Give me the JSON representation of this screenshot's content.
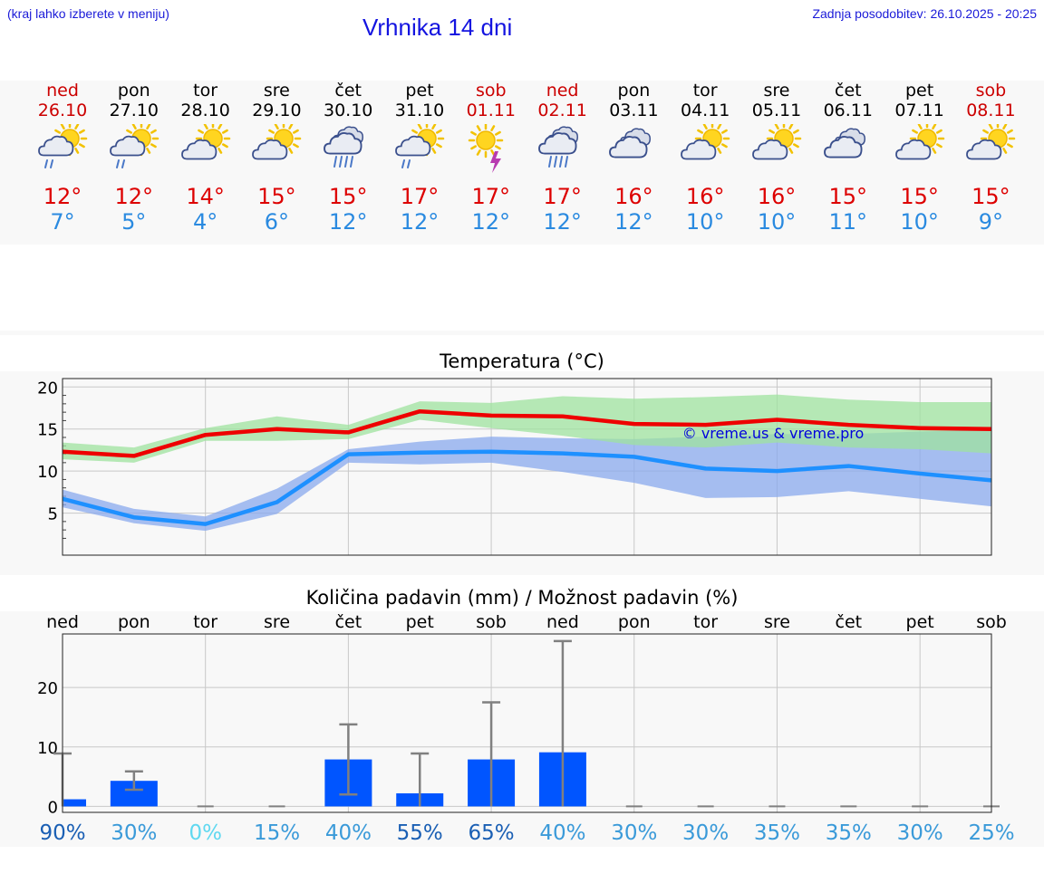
{
  "header": {
    "region_hint": "(kraj lahko izberete v meniju)",
    "title": "Vrhnika 14 dni",
    "updated": "Zadnja posodobitev: 26.10.2025 - 20:25"
  },
  "days": [
    {
      "name": "ned",
      "date": "26.10",
      "weekend": true,
      "icon": "sun-cloud-rain-icon",
      "tmax": "12°",
      "tmin": "7°"
    },
    {
      "name": "pon",
      "date": "27.10",
      "weekend": false,
      "icon": "sun-cloud-rain-icon",
      "tmax": "12°",
      "tmin": "5°"
    },
    {
      "name": "tor",
      "date": "28.10",
      "weekend": false,
      "icon": "sun-cloud-icon",
      "tmax": "14°",
      "tmin": "4°"
    },
    {
      "name": "sre",
      "date": "29.10",
      "weekend": false,
      "icon": "sun-cloud-icon",
      "tmax": "15°",
      "tmin": "6°"
    },
    {
      "name": "čet",
      "date": "30.10",
      "weekend": false,
      "icon": "cloud-heavy-rain-icon",
      "tmax": "15°",
      "tmin": "12°"
    },
    {
      "name": "pet",
      "date": "31.10",
      "weekend": false,
      "icon": "sun-cloud-rain-icon",
      "tmax": "17°",
      "tmin": "12°"
    },
    {
      "name": "sob",
      "date": "01.11",
      "weekend": true,
      "icon": "sun-thunder-icon",
      "tmax": "17°",
      "tmin": "12°"
    },
    {
      "name": "ned",
      "date": "02.11",
      "weekend": true,
      "icon": "cloud-heavy-rain-icon",
      "tmax": "17°",
      "tmin": "12°"
    },
    {
      "name": "pon",
      "date": "03.11",
      "weekend": false,
      "icon": "cloud-icon",
      "tmax": "16°",
      "tmin": "12°"
    },
    {
      "name": "tor",
      "date": "04.11",
      "weekend": false,
      "icon": "sun-cloud-icon",
      "tmax": "16°",
      "tmin": "10°"
    },
    {
      "name": "sre",
      "date": "05.11",
      "weekend": false,
      "icon": "sun-cloud-icon",
      "tmax": "16°",
      "tmin": "10°"
    },
    {
      "name": "čet",
      "date": "06.11",
      "weekend": false,
      "icon": "cloud-icon",
      "tmax": "15°",
      "tmin": "11°"
    },
    {
      "name": "pet",
      "date": "07.11",
      "weekend": false,
      "icon": "sun-cloud-icon",
      "tmax": "15°",
      "tmin": "10°"
    },
    {
      "name": "sob",
      "date": "08.11",
      "weekend": true,
      "icon": "sun-cloud-icon",
      "tmax": "15°",
      "tmin": "9°"
    }
  ],
  "colors": {
    "weekend": "#cc0000",
    "tmax": "#dd0000",
    "tmin": "#2a8ae0",
    "maxLine": "#ee0000",
    "minLine": "#1e90ff",
    "maxBand": "#9fe39f",
    "minBand": "#8aaaee",
    "bar": "#0055ff",
    "whisker": "#808080"
  },
  "chart_data": [
    {
      "type": "line",
      "title": "Temperatura (°C)",
      "watermark": "© vreme.us & vreme.pro",
      "ylim": [
        0,
        21
      ],
      "yticks": [
        20,
        15,
        10,
        5
      ],
      "x": [
        0,
        1,
        2,
        3,
        4,
        5,
        6,
        7,
        8,
        9,
        10,
        11,
        12,
        13
      ],
      "series": [
        {
          "role": "max",
          "values": [
            12.3,
            11.8,
            14.3,
            15.0,
            14.6,
            17.1,
            16.6,
            16.5,
            15.6,
            15.5,
            16.1,
            15.5,
            15.1,
            15.0
          ],
          "band_low": [
            11.4,
            11.0,
            13.6,
            13.6,
            13.8,
            16.1,
            15.1,
            14.2,
            13.1,
            12.8,
            13.4,
            12.8,
            12.6,
            12.1
          ],
          "band_high": [
            13.4,
            12.8,
            15.1,
            16.5,
            15.5,
            18.3,
            18.1,
            18.9,
            18.6,
            18.8,
            19.1,
            18.5,
            18.2,
            18.2
          ]
        },
        {
          "role": "min",
          "values": [
            6.7,
            4.5,
            3.7,
            6.3,
            12.0,
            12.2,
            12.3,
            12.1,
            11.7,
            10.3,
            10.0,
            10.6,
            9.7,
            8.9
          ],
          "band_low": [
            5.7,
            3.8,
            2.9,
            4.9,
            11.0,
            10.8,
            11.0,
            9.9,
            8.6,
            6.8,
            6.9,
            7.6,
            6.7,
            5.8
          ],
          "band_high": [
            7.8,
            5.5,
            4.6,
            7.9,
            12.6,
            13.5,
            14.1,
            13.9,
            13.8,
            14.1,
            14.4,
            14.4,
            14.7,
            14.9
          ]
        }
      ]
    },
    {
      "type": "bar",
      "title": "Količina padavin (mm) / Možnost padavin (%)",
      "ylim": [
        -1,
        29
      ],
      "yticks": [
        20,
        10,
        0
      ],
      "categories": [
        "ned",
        "pon",
        "tor",
        "sre",
        "čet",
        "pet",
        "sob",
        "ned",
        "pon",
        "tor",
        "sre",
        "čet",
        "pet",
        "sob"
      ],
      "values": [
        1.2,
        4.3,
        0,
        0,
        7.9,
        2.2,
        7.9,
        9.1,
        0,
        0,
        0,
        0,
        0,
        0
      ],
      "err_low": [
        0,
        2.8,
        0,
        0,
        2.0,
        0,
        0,
        0,
        0,
        0,
        0,
        0,
        0,
        0
      ],
      "err_high": [
        8.9,
        5.9,
        0,
        0,
        13.8,
        8.9,
        17.5,
        27.8,
        0,
        0,
        0,
        0,
        0,
        0
      ],
      "probability": [
        "90%",
        "30%",
        "0%",
        "15%",
        "40%",
        "55%",
        "65%",
        "40%",
        "30%",
        "30%",
        "35%",
        "35%",
        "30%",
        "25%"
      ],
      "probability_colors": [
        "#1a5fb4",
        "#3a9ad9",
        "#5fd8f0",
        "#3a9ad9",
        "#3a9ad9",
        "#1a5fb4",
        "#1a5fb4",
        "#3a9ad9",
        "#3a9ad9",
        "#3a9ad9",
        "#3a9ad9",
        "#3a9ad9",
        "#3a9ad9",
        "#3a9ad9"
      ]
    }
  ]
}
